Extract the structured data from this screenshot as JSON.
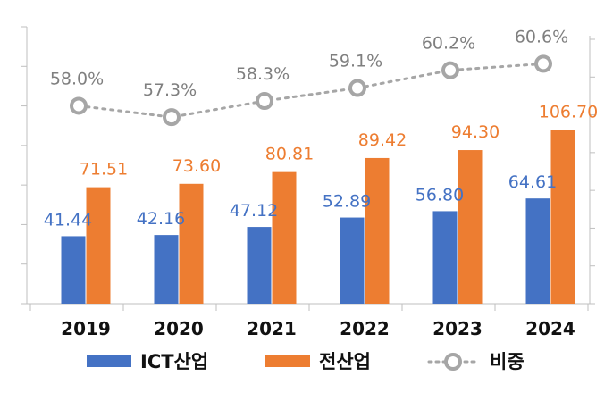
{
  "colors": {
    "ict": "#4472C4",
    "all": "#ED7D31",
    "ratio": "#A6A6A6",
    "ict_label": "#4472C4",
    "all_label": "#ED7D31",
    "ratio_label": "#7F7F7F",
    "axis": "#BFBFBF"
  },
  "chart_data": {
    "type": "bar",
    "categories": [
      "2019",
      "2020",
      "2021",
      "2022",
      "2023",
      "2024"
    ],
    "series": [
      {
        "name": "ICT산업",
        "kind": "bar",
        "values": [
          41.44,
          42.16,
          47.12,
          52.89,
          56.8,
          64.61
        ],
        "labels": [
          "41.44",
          "42.16",
          "47.12",
          "52.89",
          "56.80",
          "64.61"
        ]
      },
      {
        "name": "전산업",
        "kind": "bar",
        "values": [
          71.51,
          73.6,
          80.81,
          89.42,
          94.3,
          106.7
        ],
        "labels": [
          "71.51",
          "73.60",
          "80.81",
          "89.42",
          "94.30",
          "106.70"
        ]
      },
      {
        "name": "비중",
        "kind": "line",
        "axis": "secondary",
        "values": [
          58.0,
          57.3,
          58.3,
          59.1,
          60.2,
          60.6
        ],
        "labels": [
          "58.0%",
          "57.3%",
          "58.3%",
          "59.1%",
          "60.2%",
          "60.6%"
        ]
      }
    ],
    "ylim": [
      0,
      170
    ],
    "y2lim": [
      40,
      65
    ],
    "legend": "bottom",
    "grid": false
  }
}
